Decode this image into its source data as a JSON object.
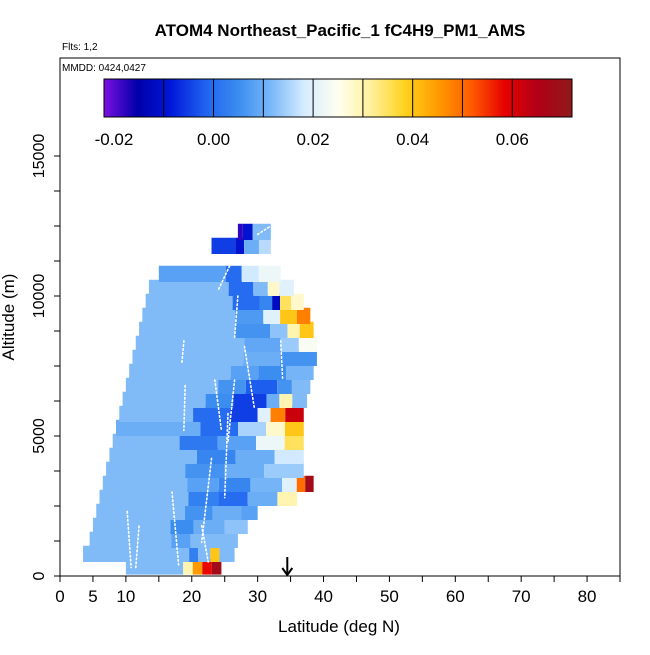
{
  "chart_data": {
    "type": "heatmap",
    "title": "ATOM4 Northeast_Pacific_1 fC4H9_PM1_AMS",
    "flights_label": "Flts: 1,2",
    "dates_label": "MMDD: 0424,0427",
    "xlabel": "Latitude (deg N)",
    "ylabel": "Altitude (m)",
    "xlim": [
      0,
      85
    ],
    "ylim": [
      0,
      18500
    ],
    "x_ticks": [
      0,
      5,
      10,
      20,
      30,
      40,
      50,
      60,
      70,
      80
    ],
    "y_ticks": [
      0,
      5000,
      10000,
      15000
    ],
    "colorbar": {
      "range": [
        -0.022,
        0.072
      ],
      "tick_values": [
        -0.02,
        0.0,
        0.02,
        0.04,
        0.06
      ],
      "tick_labels": [
        "-0.02",
        "0.00",
        "0.02",
        "0.04",
        "0.06"
      ],
      "colors": [
        "#7b10e0",
        "#0000aa",
        "#0018d8",
        "#1f60f0",
        "#3a8cf0",
        "#7ab8f8",
        "#d6ecff",
        "#fffff0",
        "#fff09a",
        "#ffd21e",
        "#ff9a00",
        "#ff5a00",
        "#e60000",
        "#b00018",
        "#8e1a1a"
      ]
    },
    "marker": {
      "latitude": 34.5,
      "symbol": "arrow"
    },
    "rows": [
      {
        "alt": 300,
        "lat_start": 10.0,
        "lat_end": 24.5,
        "segments": [
          [
            0,
            0.6,
            0.012
          ],
          [
            0.6,
            0.7,
            0.03
          ],
          [
            0.7,
            0.8,
            0.045
          ],
          [
            0.8,
            0.9,
            0.058
          ],
          [
            0.9,
            1.0,
            0.068
          ]
        ]
      },
      {
        "alt": 750,
        "lat_start": 3.5,
        "lat_end": 26.5,
        "segments": [
          [
            0,
            0.7,
            0.012
          ],
          [
            0.7,
            0.76,
            0.003
          ],
          [
            0.76,
            0.84,
            0.012
          ],
          [
            0.84,
            0.9,
            0.04
          ],
          [
            0.9,
            1.0,
            0.012
          ]
        ]
      },
      {
        "alt": 1250,
        "lat_start": 4.5,
        "lat_end": 27.0,
        "segments": [
          [
            0,
            0.55,
            0.012
          ],
          [
            0.55,
            0.68,
            0.008
          ],
          [
            0.68,
            1.0,
            0.012
          ]
        ]
      },
      {
        "alt": 1750,
        "lat_start": 5.0,
        "lat_end": 28.5,
        "segments": [
          [
            0,
            0.5,
            0.012
          ],
          [
            0.5,
            0.65,
            0.005
          ],
          [
            0.65,
            0.85,
            0.01
          ],
          [
            0.85,
            1.0,
            0.013
          ]
        ]
      },
      {
        "alt": 2250,
        "lat_start": 5.5,
        "lat_end": 30.0,
        "segments": [
          [
            0,
            0.55,
            0.012
          ],
          [
            0.55,
            0.72,
            0.006
          ],
          [
            0.72,
            0.9,
            0.01
          ],
          [
            0.9,
            1.0,
            0.008
          ]
        ]
      },
      {
        "alt": 2750,
        "lat_start": 6.0,
        "lat_end": 36.0,
        "segments": [
          [
            0,
            0.45,
            0.012
          ],
          [
            0.45,
            0.6,
            0.003
          ],
          [
            0.6,
            0.75,
            0.0
          ],
          [
            0.75,
            0.9,
            0.01
          ],
          [
            0.9,
            1.0,
            0.03
          ]
        ]
      },
      {
        "alt": 3250,
        "lat_start": 6.5,
        "lat_end": 38.5,
        "segments": [
          [
            0,
            0.4,
            0.012
          ],
          [
            0.4,
            0.55,
            0.008
          ],
          [
            0.55,
            0.7,
            0.004
          ],
          [
            0.7,
            0.85,
            0.011
          ],
          [
            0.85,
            0.92,
            0.02
          ],
          [
            0.92,
            0.96,
            0.05
          ],
          [
            0.96,
            1.0,
            0.068
          ]
        ]
      },
      {
        "alt": 3750,
        "lat_start": 7.0,
        "lat_end": 37.0,
        "segments": [
          [
            0,
            0.4,
            0.012
          ],
          [
            0.4,
            0.6,
            0.006
          ],
          [
            0.6,
            0.8,
            0.01
          ],
          [
            0.8,
            1.0,
            0.014
          ]
        ]
      },
      {
        "alt": 4250,
        "lat_start": 7.5,
        "lat_end": 37.0,
        "segments": [
          [
            0,
            0.45,
            0.012
          ],
          [
            0.45,
            0.65,
            0.004
          ],
          [
            0.65,
            0.85,
            0.01
          ],
          [
            0.85,
            1.0,
            0.018
          ]
        ]
      },
      {
        "alt": 4750,
        "lat_start": 8.0,
        "lat_end": 37.0,
        "segments": [
          [
            0,
            0.35,
            0.012
          ],
          [
            0.35,
            0.55,
            0.002
          ],
          [
            0.55,
            0.75,
            0.008
          ],
          [
            0.75,
            0.9,
            0.022
          ],
          [
            0.9,
            1.0,
            0.035
          ]
        ]
      },
      {
        "alt": 5250,
        "lat_start": 8.5,
        "lat_end": 37.0,
        "segments": [
          [
            0,
            0.45,
            0.01
          ],
          [
            0.45,
            0.65,
            0.0
          ],
          [
            0.65,
            0.8,
            0.015
          ],
          [
            0.8,
            0.9,
            0.028
          ],
          [
            0.9,
            1.0,
            0.04
          ]
        ]
      },
      {
        "alt": 5750,
        "lat_start": 9.0,
        "lat_end": 37.0,
        "segments": [
          [
            0,
            0.4,
            0.012
          ],
          [
            0.4,
            0.6,
            0.0
          ],
          [
            0.6,
            0.75,
            -0.005
          ],
          [
            0.75,
            0.82,
            0.02
          ],
          [
            0.82,
            0.9,
            0.048
          ],
          [
            0.9,
            1.0,
            0.062
          ]
        ]
      },
      {
        "alt": 6250,
        "lat_start": 9.5,
        "lat_end": 37.5,
        "segments": [
          [
            0,
            0.45,
            0.012
          ],
          [
            0.45,
            0.6,
            0.005
          ],
          [
            0.6,
            0.78,
            -0.005
          ],
          [
            0.78,
            0.85,
            0.01
          ],
          [
            0.85,
            0.92,
            0.03
          ],
          [
            0.92,
            1.0,
            0.012
          ]
        ]
      },
      {
        "alt": 6750,
        "lat_start": 10.0,
        "lat_end": 38.0,
        "segments": [
          [
            0,
            0.5,
            0.012
          ],
          [
            0.5,
            0.65,
            0.006
          ],
          [
            0.65,
            0.82,
            -0.002
          ],
          [
            0.82,
            0.9,
            0.006
          ],
          [
            0.9,
            1.0,
            0.012
          ]
        ]
      },
      {
        "alt": 7250,
        "lat_start": 10.5,
        "lat_end": 38.5,
        "segments": [
          [
            0,
            0.55,
            0.012
          ],
          [
            0.55,
            0.7,
            0.008
          ],
          [
            0.7,
            0.85,
            0.005
          ],
          [
            0.85,
            1.0,
            0.011
          ]
        ]
      },
      {
        "alt": 7750,
        "lat_start": 11.0,
        "lat_end": 39.0,
        "segments": [
          [
            0,
            0.6,
            0.012
          ],
          [
            0.6,
            0.8,
            0.01
          ],
          [
            0.8,
            1.0,
            0.006
          ]
        ]
      },
      {
        "alt": 8250,
        "lat_start": 11.5,
        "lat_end": 39.0,
        "segments": [
          [
            0,
            0.6,
            0.012
          ],
          [
            0.6,
            0.8,
            0.009
          ],
          [
            0.8,
            0.9,
            0.014
          ],
          [
            0.9,
            1.0,
            0.024
          ]
        ]
      },
      {
        "alt": 8750,
        "lat_start": 12.0,
        "lat_end": 38.5,
        "segments": [
          [
            0,
            0.55,
            0.012
          ],
          [
            0.55,
            0.75,
            0.006
          ],
          [
            0.75,
            0.85,
            0.013
          ],
          [
            0.85,
            0.92,
            0.03
          ],
          [
            0.92,
            1.0,
            0.04
          ]
        ]
      },
      {
        "alt": 9250,
        "lat_start": 12.5,
        "lat_end": 38.0,
        "segments": [
          [
            0,
            0.55,
            0.012
          ],
          [
            0.55,
            0.72,
            0.007
          ],
          [
            0.72,
            0.82,
            0.02
          ],
          [
            0.82,
            0.92,
            0.04
          ],
          [
            0.92,
            1.0,
            0.048
          ]
        ]
      },
      {
        "alt": 9750,
        "lat_start": 13.0,
        "lat_end": 37.0,
        "segments": [
          [
            0,
            0.55,
            0.012
          ],
          [
            0.55,
            0.72,
            0.0
          ],
          [
            0.72,
            0.8,
            0.004
          ],
          [
            0.8,
            0.85,
            -0.012
          ],
          [
            0.85,
            0.92,
            0.035
          ],
          [
            0.92,
            1.0,
            0.028
          ]
        ]
      },
      {
        "alt": 10250,
        "lat_start": 13.5,
        "lat_end": 35.5,
        "segments": [
          [
            0,
            0.55,
            0.012
          ],
          [
            0.55,
            0.72,
            0.0
          ],
          [
            0.72,
            0.82,
            0.012
          ],
          [
            0.82,
            0.9,
            0.028
          ],
          [
            0.9,
            1.0,
            0.02
          ]
        ]
      },
      {
        "alt": 10750,
        "lat_start": 15.0,
        "lat_end": 33.5,
        "segments": [
          [
            0,
            0.55,
            0.008
          ],
          [
            0.55,
            0.68,
            0.0
          ],
          [
            0.68,
            0.82,
            0.018
          ],
          [
            0.82,
            1.0,
            0.022
          ]
        ]
      },
      {
        "alt": 11750,
        "lat_start": 23.0,
        "lat_end": 32.0,
        "segments": [
          [
            0,
            0.4,
            -0.005
          ],
          [
            0.4,
            0.55,
            -0.01
          ],
          [
            0.55,
            0.8,
            0.01
          ],
          [
            0.8,
            1.0,
            0.016
          ]
        ]
      },
      {
        "alt": 12250,
        "lat_start": 27.0,
        "lat_end": 32.0,
        "segments": [
          [
            0,
            0.15,
            -0.018
          ],
          [
            0.15,
            0.45,
            -0.01
          ],
          [
            0.45,
            1.0,
            0.012
          ]
        ]
      }
    ]
  }
}
